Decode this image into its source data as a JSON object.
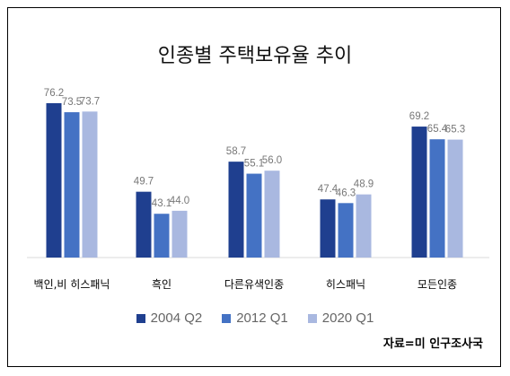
{
  "chart_data": {
    "type": "bar",
    "title": "인종별 주택보유율 추이",
    "categories": [
      "백인,비 히스패닉",
      "흑인",
      "다른유색인종",
      "히스패닉",
      "모든인종"
    ],
    "series": [
      {
        "name": "2004 Q2",
        "color": "#1f3f8f",
        "values": [
          76.2,
          49.7,
          58.7,
          47.4,
          69.2
        ],
        "labels": [
          "76.2",
          "49.7",
          "58.7",
          "47.4",
          "69.2"
        ]
      },
      {
        "name": "2012 Q1",
        "color": "#4472c4",
        "values": [
          73.5,
          43.1,
          55.1,
          46.3,
          65.4
        ],
        "labels": [
          "73.5",
          "43.1",
          "55.1",
          "46.3",
          "65.4"
        ]
      },
      {
        "name": "2020 Q1",
        "color": "#a9b8e0",
        "values": [
          73.7,
          44.0,
          56.0,
          48.9,
          65.3
        ],
        "labels": [
          "73.7",
          "44.0",
          "56.0",
          "48.9",
          "65.3"
        ]
      }
    ],
    "xlabel": "",
    "ylabel": "",
    "ylim": [
      30,
      80
    ],
    "grid": false,
    "legend_position": "bottom"
  },
  "source": "자료=미 인구조사국"
}
